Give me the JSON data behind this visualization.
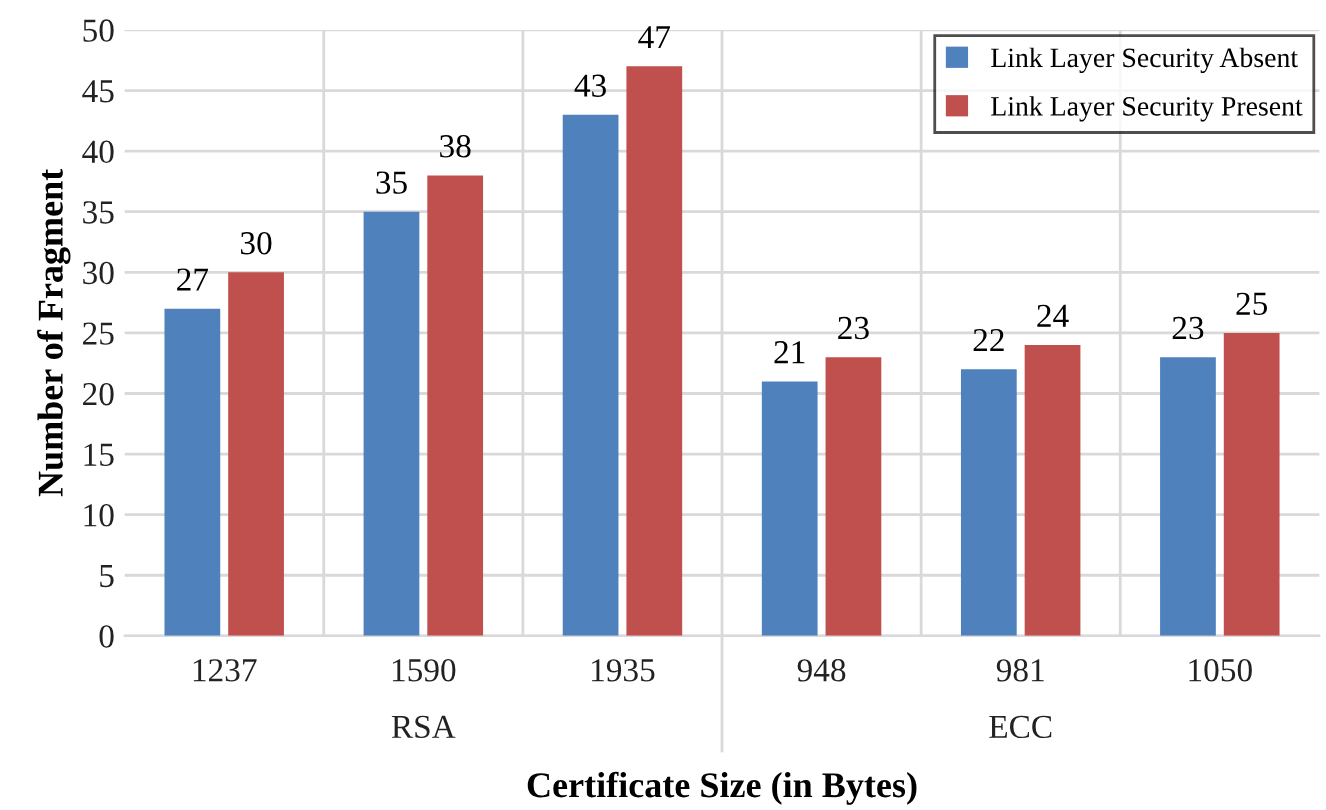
{
  "chart_data": {
    "type": "bar",
    "xlabel": "Certificate Size (in Bytes)",
    "ylabel": "Number of Fragment",
    "categories": [
      "1237",
      "1590",
      "1935",
      "948",
      "981",
      "1050"
    ],
    "series": [
      {
        "name": "Link Layer Security Absent",
        "color": "#4f81bd",
        "values": [
          27,
          35,
          43,
          21,
          22,
          23
        ]
      },
      {
        "name": "Link Layer Security Present",
        "color": "#c0504d",
        "values": [
          30,
          38,
          47,
          23,
          24,
          25
        ]
      }
    ],
    "ylim": [
      0,
      50
    ],
    "yticks": [
      0,
      5,
      10,
      15,
      20,
      25,
      30,
      35,
      40,
      45,
      50
    ],
    "grid": true,
    "legend": "top right",
    "data_labels": true,
    "annotations": [
      "RSA",
      "ECC"
    ]
  }
}
